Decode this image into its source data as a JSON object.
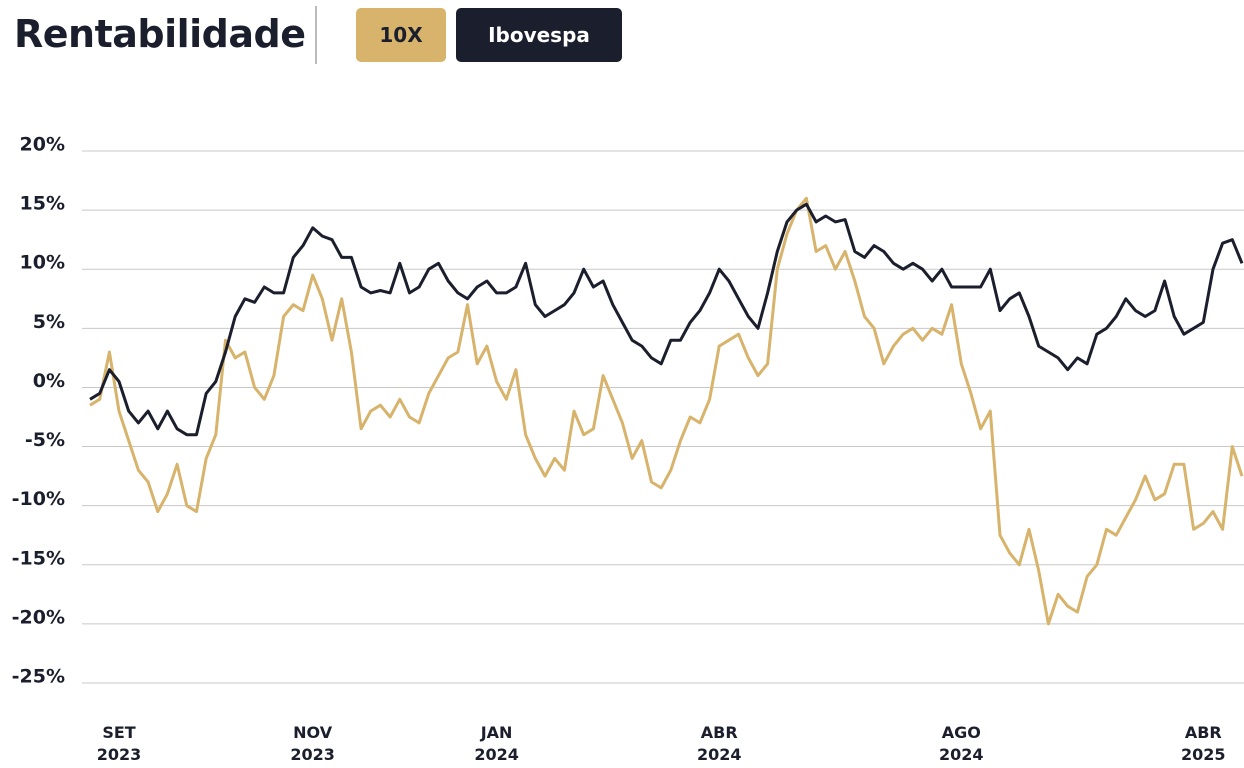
{
  "chart_data": {
    "type": "line",
    "title": "Rentabilidade",
    "categories": [
      null,
      null,
      null,
      "SET\n2023",
      null,
      null,
      null,
      null,
      null,
      null,
      null,
      null,
      null,
      null,
      null,
      null,
      null,
      null,
      null,
      null,
      null,
      null,
      null,
      "NOV\n2023",
      null,
      null,
      null,
      null,
      null,
      null,
      null,
      null,
      null,
      null,
      null,
      null,
      null,
      null,
      null,
      null,
      null,
      null,
      "JAN\n2024",
      null,
      null,
      null,
      null,
      null,
      null,
      null,
      null,
      null,
      null,
      null,
      null,
      null,
      null,
      null,
      null,
      null,
      null,
      null,
      null,
      null,
      null,
      "ABR\n2024",
      null,
      null,
      null,
      null,
      null,
      null,
      null,
      null,
      null,
      null,
      null,
      null,
      null,
      null,
      null,
      null,
      null,
      null,
      null,
      null,
      null,
      null,
      null,
      null,
      "AGO\n2024",
      null,
      null,
      null,
      null,
      null,
      null,
      null,
      null,
      null,
      null,
      null,
      null,
      null,
      null,
      null,
      null,
      null,
      null,
      null,
      null,
      null,
      null,
      null,
      null,
      "ABR\n2025",
      null,
      null,
      null,
      null
    ],
    "series": [
      {
        "name": "10X",
        "color": "#d7b36b",
        "values": [
          -1.5,
          -1,
          3,
          -2,
          -4.5,
          -7,
          -8,
          -10.5,
          -9,
          -6.5,
          -10,
          -10.5,
          -6,
          -4,
          4,
          2.5,
          3,
          0,
          -1,
          1,
          6,
          7,
          6.5,
          9.5,
          7.5,
          4,
          7.5,
          3,
          -3.5,
          -2,
          -1.5,
          -2.5,
          -1,
          -2.5,
          -3,
          -0.5,
          1,
          2.5,
          3,
          7,
          2,
          3.5,
          0.5,
          -1,
          1.5,
          -4,
          -6,
          -7.5,
          -6,
          -7,
          -2,
          -4,
          -3.5,
          1,
          -1,
          -3,
          -6,
          -4.5,
          -8,
          -8.5,
          -7,
          -4.5,
          -2.5,
          -3,
          -1,
          3.5,
          4,
          4.5,
          2.5,
          1,
          2,
          10,
          13,
          15,
          16,
          11.5,
          12,
          10,
          11.5,
          9,
          6,
          5,
          2,
          3.5,
          4.5,
          5,
          4,
          5,
          4.5,
          7,
          2,
          -0.5,
          -3.5,
          -2,
          -12.5,
          -14,
          -15,
          -12,
          -15.5,
          -20,
          -17.5,
          -18.5,
          -19,
          -16,
          -15,
          -12,
          -12.5,
          -11,
          -9.5,
          -7.5,
          -9.5,
          -9,
          -6.5,
          -6.5,
          -12,
          -11.5,
          -10.5,
          -12,
          -5,
          -7.5
        ]
      },
      {
        "name": "Ibovespa",
        "color": "#1b1e2c",
        "values": [
          -1,
          -0.5,
          1.5,
          0.5,
          -2,
          -3,
          -2,
          -3.5,
          -2,
          -3.5,
          -4,
          -4,
          -0.5,
          0.5,
          3,
          6,
          7.5,
          7.2,
          8.5,
          8,
          8,
          11,
          12,
          13.5,
          12.8,
          12.5,
          11,
          11,
          8.5,
          8,
          8.2,
          8,
          10.5,
          8,
          8.5,
          10,
          10.5,
          9,
          8,
          7.5,
          8.5,
          9,
          8,
          8,
          8.5,
          10.5,
          7,
          6,
          6.5,
          7,
          8,
          10,
          8.5,
          9,
          7,
          5.5,
          4,
          3.5,
          2.5,
          2,
          4,
          4,
          5.5,
          6.5,
          8,
          10,
          9,
          7.5,
          6,
          5,
          8,
          11.5,
          14,
          15,
          15.5,
          14,
          14.5,
          14,
          14.2,
          11.5,
          11,
          12,
          11.5,
          10.5,
          10,
          10.5,
          10,
          9,
          10,
          8.5,
          8.5,
          8.5,
          8.5,
          10,
          6.5,
          7.5,
          8,
          6,
          3.5,
          3,
          2.5,
          1.5,
          2.5,
          2,
          4.5,
          5,
          6,
          7.5,
          6.5,
          6,
          6.5,
          9,
          6,
          4.5,
          5,
          5.5,
          10,
          12.2,
          12.5,
          10.5
        ]
      }
    ],
    "ylim": [
      -25,
      20
    ],
    "yticks": [
      {
        "value": -25,
        "label": "-25%"
      },
      {
        "value": -20,
        "label": "-20%"
      },
      {
        "value": -15,
        "label": "-15%"
      },
      {
        "value": -10,
        "label": "-10%"
      },
      {
        "value": -5,
        "label": "-5%"
      },
      {
        "value": 0,
        "label": "0%"
      },
      {
        "value": 5,
        "label": "5%"
      },
      {
        "value": 10,
        "label": "10%"
      },
      {
        "value": 15,
        "label": "15%"
      },
      {
        "value": 20,
        "label": "20%"
      }
    ],
    "grid": true
  }
}
